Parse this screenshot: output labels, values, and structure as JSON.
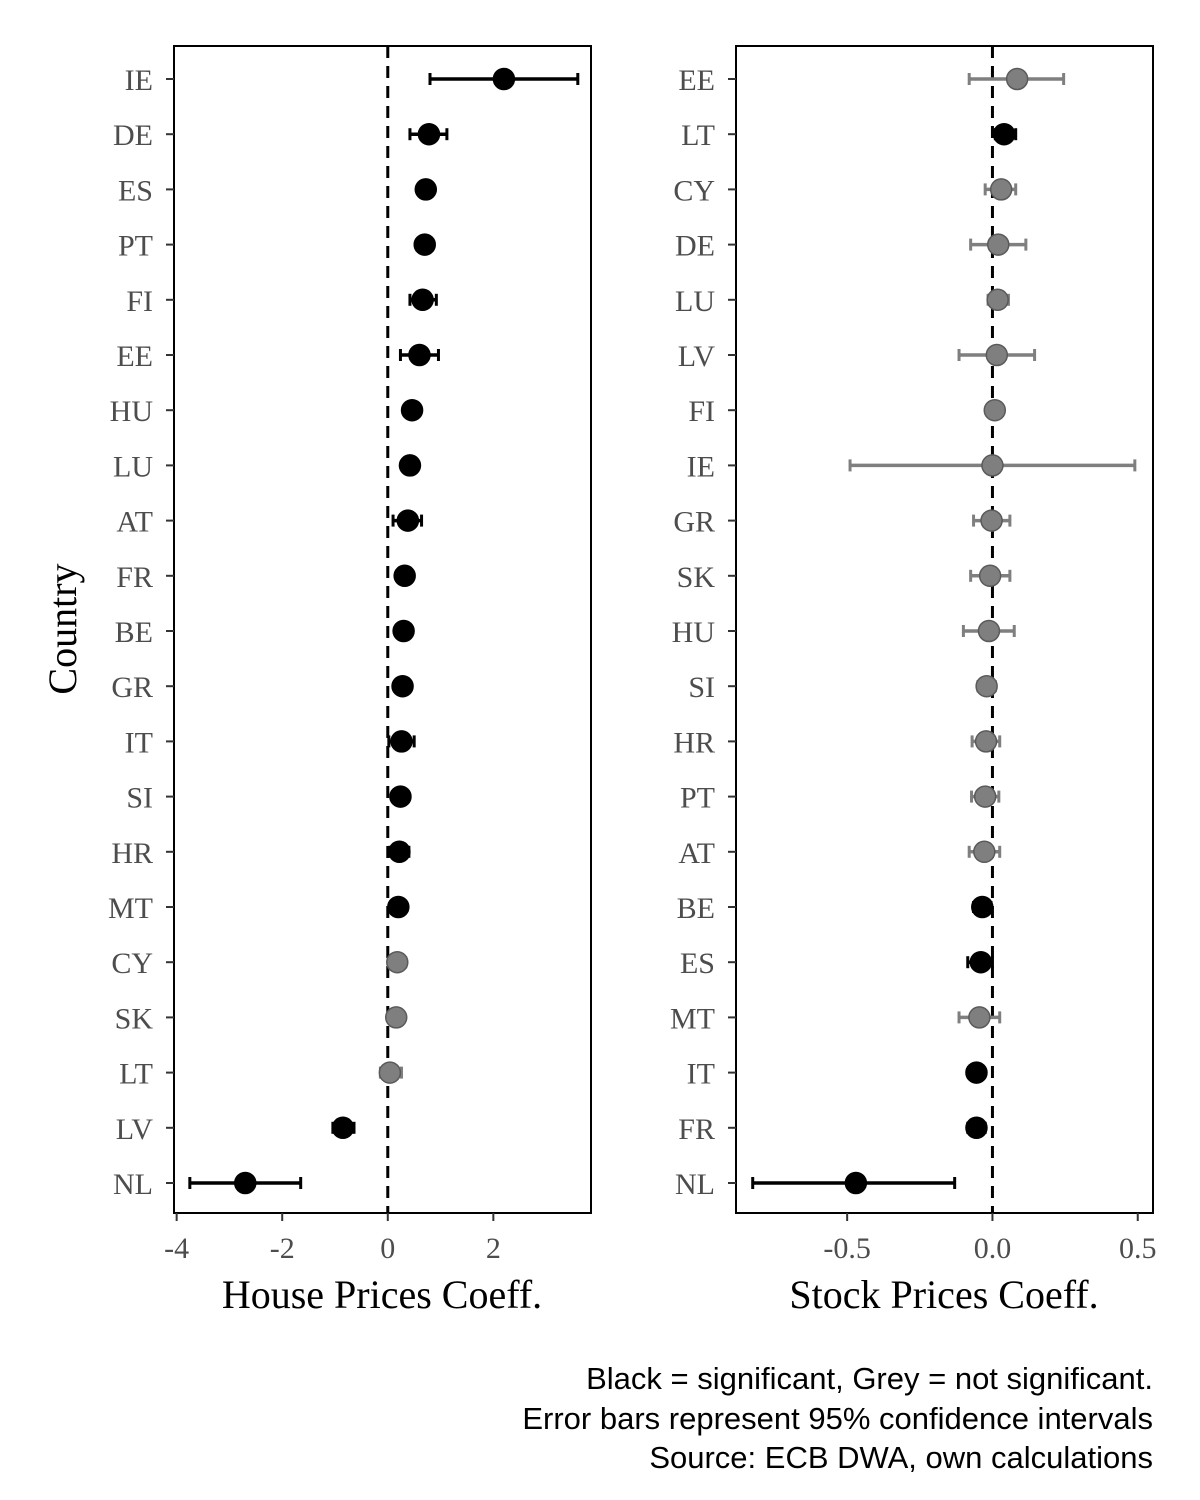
{
  "chart_data": [
    {
      "type": "errorbar-dotplot",
      "panel": "house",
      "xlabel": "House Prices Coeff.",
      "ylabel": "Country",
      "xlim": [
        -4.05,
        3.85
      ],
      "xticks": [
        -4,
        -2,
        0,
        2
      ],
      "xtick_labels": [
        "-4",
        "-2",
        "0",
        "2"
      ],
      "reference_line": 0,
      "points": [
        {
          "country": "IE",
          "est": 2.2,
          "lo": 0.8,
          "hi": 3.6,
          "significant": true
        },
        {
          "country": "DE",
          "est": 0.78,
          "lo": 0.42,
          "hi": 1.12,
          "significant": true
        },
        {
          "country": "ES",
          "est": 0.72,
          "lo": 0.6,
          "hi": 0.84,
          "significant": true
        },
        {
          "country": "PT",
          "est": 0.7,
          "lo": 0.58,
          "hi": 0.82,
          "significant": true
        },
        {
          "country": "FI",
          "est": 0.66,
          "lo": 0.42,
          "hi": 0.92,
          "significant": true
        },
        {
          "country": "EE",
          "est": 0.6,
          "lo": 0.24,
          "hi": 0.96,
          "significant": true
        },
        {
          "country": "HU",
          "est": 0.46,
          "lo": 0.36,
          "hi": 0.56,
          "significant": true
        },
        {
          "country": "LU",
          "est": 0.42,
          "lo": 0.32,
          "hi": 0.52,
          "significant": true
        },
        {
          "country": "AT",
          "est": 0.38,
          "lo": 0.1,
          "hi": 0.64,
          "significant": true
        },
        {
          "country": "FR",
          "est": 0.32,
          "lo": 0.24,
          "hi": 0.4,
          "significant": true
        },
        {
          "country": "BE",
          "est": 0.3,
          "lo": 0.2,
          "hi": 0.4,
          "significant": true
        },
        {
          "country": "GR",
          "est": 0.28,
          "lo": 0.2,
          "hi": 0.36,
          "significant": true
        },
        {
          "country": "IT",
          "est": 0.26,
          "lo": 0.02,
          "hi": 0.5,
          "significant": true
        },
        {
          "country": "SI",
          "est": 0.24,
          "lo": 0.16,
          "hi": 0.32,
          "significant": true
        },
        {
          "country": "HR",
          "est": 0.22,
          "lo": 0.04,
          "hi": 0.4,
          "significant": true
        },
        {
          "country": "MT",
          "est": 0.2,
          "lo": 0.1,
          "hi": 0.3,
          "significant": true
        },
        {
          "country": "CY",
          "est": 0.18,
          "lo": 0.06,
          "hi": 0.34,
          "significant": false
        },
        {
          "country": "SK",
          "est": 0.16,
          "lo": 0.06,
          "hi": 0.3,
          "significant": false
        },
        {
          "country": "LT",
          "est": 0.04,
          "lo": -0.14,
          "hi": 0.26,
          "significant": false
        },
        {
          "country": "LV",
          "est": -0.85,
          "lo": -1.04,
          "hi": -0.64,
          "significant": true
        },
        {
          "country": "NL",
          "est": -2.7,
          "lo": -3.75,
          "hi": -1.65,
          "significant": true
        }
      ]
    },
    {
      "type": "errorbar-dotplot",
      "panel": "stock",
      "xlabel": "Stock Prices Coeff.",
      "xlim": [
        -0.8825,
        0.5525
      ],
      "xticks": [
        -0.5,
        0.0,
        0.5
      ],
      "xtick_labels": [
        "-0.5",
        "0.0",
        "0.5"
      ],
      "reference_line": 0,
      "points": [
        {
          "country": "EE",
          "est": 0.085,
          "lo": -0.08,
          "hi": 0.245,
          "significant": false
        },
        {
          "country": "LT",
          "est": 0.04,
          "lo": 0.01,
          "hi": 0.08,
          "significant": true
        },
        {
          "country": "CY",
          "est": 0.03,
          "lo": -0.025,
          "hi": 0.08,
          "significant": false
        },
        {
          "country": "DE",
          "est": 0.02,
          "lo": -0.075,
          "hi": 0.115,
          "significant": false
        },
        {
          "country": "LU",
          "est": 0.018,
          "lo": -0.015,
          "hi": 0.055,
          "significant": false
        },
        {
          "country": "LV",
          "est": 0.015,
          "lo": -0.115,
          "hi": 0.145,
          "significant": false
        },
        {
          "country": "FI",
          "est": 0.008,
          "lo": -0.012,
          "hi": 0.028,
          "significant": false
        },
        {
          "country": "IE",
          "est": 0.0,
          "lo": -0.49,
          "hi": 0.49,
          "significant": false
        },
        {
          "country": "GR",
          "est": -0.003,
          "lo": -0.065,
          "hi": 0.06,
          "significant": false
        },
        {
          "country": "SK",
          "est": -0.008,
          "lo": -0.075,
          "hi": 0.06,
          "significant": false
        },
        {
          "country": "HU",
          "est": -0.012,
          "lo": -0.1,
          "hi": 0.075,
          "significant": false
        },
        {
          "country": "SI",
          "est": -0.02,
          "lo": -0.05,
          "hi": 0.01,
          "significant": false
        },
        {
          "country": "HR",
          "est": -0.022,
          "lo": -0.07,
          "hi": 0.025,
          "significant": false
        },
        {
          "country": "PT",
          "est": -0.025,
          "lo": -0.072,
          "hi": 0.022,
          "significant": false
        },
        {
          "country": "AT",
          "est": -0.028,
          "lo": -0.08,
          "hi": 0.025,
          "significant": false
        },
        {
          "country": "BE",
          "est": -0.035,
          "lo": -0.065,
          "hi": -0.005,
          "significant": true
        },
        {
          "country": "ES",
          "est": -0.04,
          "lo": -0.085,
          "hi": 0.0,
          "significant": true
        },
        {
          "country": "MT",
          "est": -0.045,
          "lo": -0.115,
          "hi": 0.025,
          "significant": false
        },
        {
          "country": "IT",
          "est": -0.055,
          "lo": -0.08,
          "hi": -0.03,
          "significant": true
        },
        {
          "country": "FR",
          "est": -0.055,
          "lo": -0.085,
          "hi": -0.025,
          "significant": true
        },
        {
          "country": "NL",
          "est": -0.47,
          "lo": -0.825,
          "hi": -0.13,
          "significant": true
        }
      ]
    }
  ],
  "caption": {
    "line1": "Black = significant, Grey = not significant.",
    "line2": "Error bars represent 95% confidence intervals",
    "line3": "Source: ECB DWA, own calculations"
  },
  "colors": {
    "significant": "#000000",
    "not_significant": "#7f7f7f",
    "tick_label": "#4d4d4d"
  }
}
